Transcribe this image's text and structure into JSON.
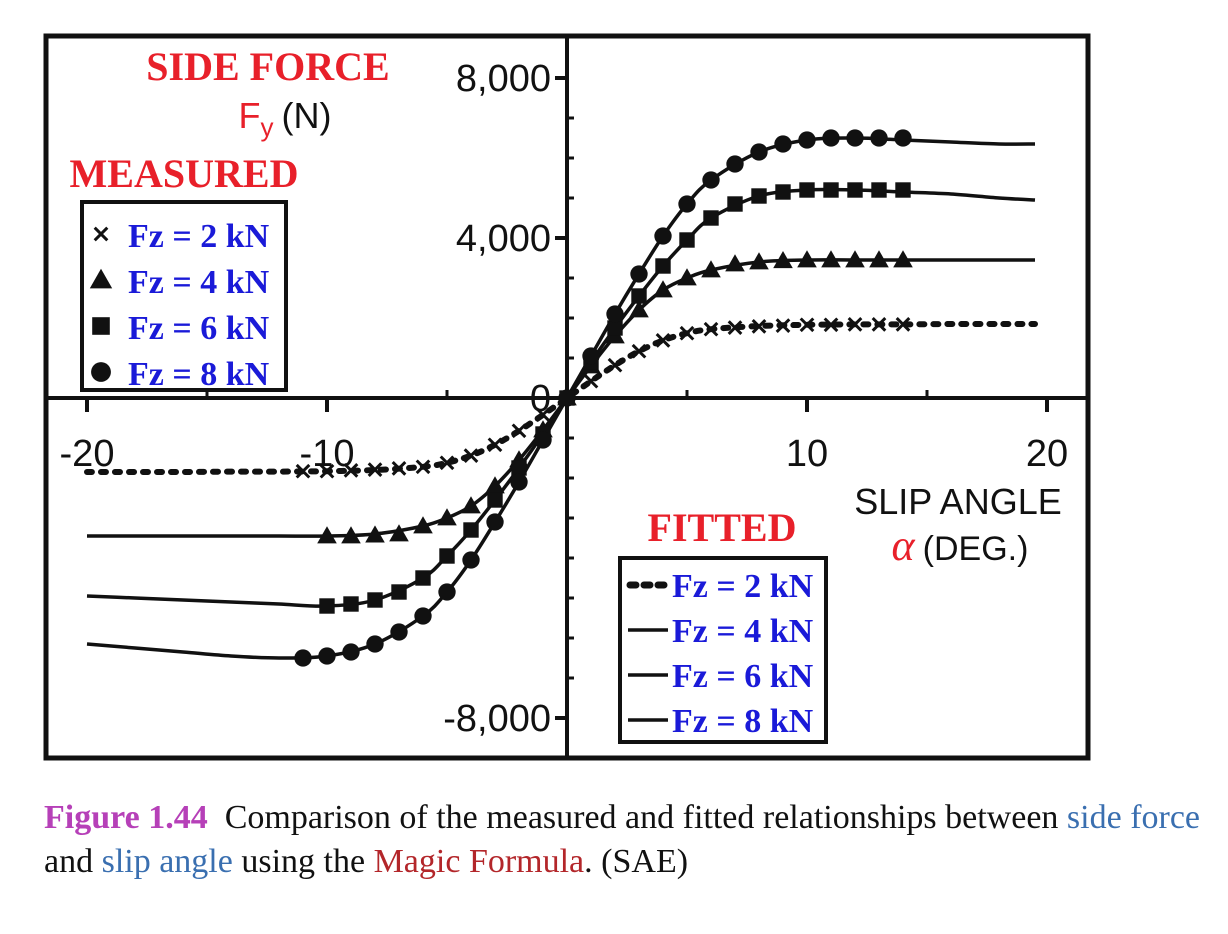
{
  "chart_data": {
    "type": "line",
    "title": "SIDE FORCE",
    "ylabel_symbol": "F",
    "ylabel_subscript": "y",
    "ylabel_unit": "(N)",
    "xlabel": "SLIP ANGLE",
    "xlabel_symbol": "α",
    "xlabel_unit": "(DEG.)",
    "xlim": [
      -20.5,
      22
    ],
    "ylim": [
      -8000,
      8000
    ],
    "x_ticks": [
      -20,
      -10,
      10,
      20
    ],
    "x_tick_labels": [
      "-20",
      "-10",
      "10",
      "20"
    ],
    "y_ticks": [
      8000,
      4000,
      0,
      -8000
    ],
    "y_tick_labels": [
      "8,000",
      "4,000",
      "0",
      "-8,000"
    ],
    "grid": false,
    "measured_title": "MEASURED",
    "fitted_title": "FITTED",
    "legend_measured": [
      {
        "marker": "x",
        "label": "Fz = 2 kN"
      },
      {
        "marker": "triangle",
        "label": "Fz = 4 kN"
      },
      {
        "marker": "square",
        "label": "Fz = 6 kN"
      },
      {
        "marker": "circle",
        "label": "Fz = 8 kN"
      }
    ],
    "legend_fitted": [
      {
        "style": "dotted",
        "label": "Fz = 2 kN"
      },
      {
        "style": "solid",
        "label": "Fz = 4 kN"
      },
      {
        "style": "solid",
        "label": "Fz = 6 kN"
      },
      {
        "style": "solid",
        "label": "Fz = 8 kN"
      }
    ],
    "series": [
      {
        "name": "Fz = 2 kN",
        "marker": "x",
        "line": "dotted",
        "fitted_x": [
          -20,
          -18,
          -16,
          -14,
          -12,
          -10,
          -8,
          -6,
          -5,
          -4,
          -3,
          -2,
          -1,
          0,
          1,
          2,
          3,
          4,
          5,
          6,
          8,
          10,
          12,
          14,
          16,
          18,
          19.5
        ],
        "fitted_y": [
          -1850,
          -1850,
          -1850,
          -1840,
          -1840,
          -1830,
          -1800,
          -1720,
          -1620,
          -1440,
          -1170,
          -820,
          -420,
          0,
          420,
          820,
          1170,
          1440,
          1620,
          1720,
          1800,
          1830,
          1840,
          1840,
          1850,
          1850,
          1850
        ],
        "measured_x": [
          -11,
          -10,
          -9,
          -8,
          -7,
          -6,
          -5,
          -4,
          -3,
          -2,
          -1,
          0,
          1,
          2,
          3,
          4,
          5,
          6,
          7,
          8,
          9,
          10,
          11,
          12,
          13,
          14
        ],
        "measured_y": [
          -1830,
          -1830,
          -1810,
          -1790,
          -1760,
          -1720,
          -1620,
          -1440,
          -1170,
          -820,
          -420,
          0,
          420,
          820,
          1170,
          1440,
          1620,
          1720,
          1760,
          1790,
          1810,
          1830,
          1830,
          1840,
          1840,
          1840
        ]
      },
      {
        "name": "Fz = 4 kN",
        "marker": "triangle",
        "line": "solid",
        "fitted_x": [
          -20,
          -18,
          -16,
          -14,
          -12,
          -10,
          -8,
          -6,
          -5,
          -4,
          -3,
          -2,
          -1,
          0,
          1,
          2,
          3,
          4,
          5,
          6,
          8,
          10,
          12,
          14,
          16,
          18,
          19.5
        ],
        "fitted_y": [
          -3450,
          -3450,
          -3450,
          -3450,
          -3450,
          -3450,
          -3400,
          -3200,
          -3000,
          -2700,
          -2200,
          -1550,
          -800,
          0,
          800,
          1550,
          2200,
          2700,
          3000,
          3200,
          3400,
          3450,
          3450,
          3450,
          3450,
          3450,
          3450
        ],
        "measured_x": [
          -10,
          -9,
          -8,
          -7,
          -6,
          -5,
          -4,
          -3,
          -2,
          -1,
          0,
          1,
          2,
          3,
          4,
          5,
          6,
          7,
          8,
          9,
          10,
          11,
          12,
          13,
          14
        ],
        "measured_y": [
          -3450,
          -3450,
          -3430,
          -3400,
          -3200,
          -3000,
          -2700,
          -2200,
          -1550,
          -800,
          0,
          800,
          1550,
          2200,
          2700,
          3000,
          3200,
          3350,
          3400,
          3430,
          3450,
          3450,
          3450,
          3450,
          3450
        ]
      },
      {
        "name": "Fz = 6 kN",
        "marker": "square",
        "line": "solid",
        "fitted_x": [
          -20,
          -18,
          -16,
          -14,
          -12,
          -10,
          -8,
          -6,
          -5,
          -4,
          -3,
          -2,
          -1,
          0,
          1,
          2,
          3,
          4,
          5,
          6,
          8,
          10,
          12,
          14,
          16,
          18,
          19.5
        ],
        "fitted_y": [
          -4950,
          -5000,
          -5050,
          -5100,
          -5150,
          -5200,
          -5050,
          -4500,
          -3950,
          -3300,
          -2550,
          -1750,
          -900,
          0,
          900,
          1750,
          2550,
          3300,
          3950,
          4500,
          5050,
          5200,
          5200,
          5150,
          5100,
          5000,
          4950
        ],
        "measured_x": [
          -10,
          -9,
          -8,
          -7,
          -6,
          -5,
          -4,
          -3,
          -2,
          -1,
          0,
          1,
          2,
          3,
          4,
          5,
          6,
          7,
          8,
          9,
          10,
          11,
          12,
          13,
          14
        ],
        "measured_y": [
          -5200,
          -5150,
          -5050,
          -4850,
          -4500,
          -3950,
          -3300,
          -2550,
          -1750,
          -900,
          0,
          900,
          1750,
          2550,
          3300,
          3950,
          4500,
          4850,
          5050,
          5150,
          5200,
          5200,
          5200,
          5200,
          5200
        ]
      },
      {
        "name": "Fz = 8 kN",
        "marker": "circle",
        "line": "solid",
        "fitted_x": [
          -20,
          -18,
          -16,
          -14,
          -12,
          -10,
          -8,
          -6,
          -5,
          -4,
          -3,
          -2,
          -1,
          0,
          1,
          2,
          3,
          4,
          5,
          6,
          8,
          10,
          12,
          14,
          16,
          18,
          19.5
        ],
        "fitted_y": [
          -6150,
          -6250,
          -6350,
          -6450,
          -6500,
          -6450,
          -6150,
          -5450,
          -4850,
          -4050,
          -3100,
          -2100,
          -1050,
          0,
          1050,
          2100,
          3100,
          4050,
          4850,
          5450,
          6150,
          6450,
          6500,
          6450,
          6400,
          6350,
          6350
        ],
        "measured_x": [
          -11,
          -10,
          -9,
          -8,
          -7,
          -6,
          -5,
          -4,
          -3,
          -2,
          -1,
          0,
          1,
          2,
          3,
          4,
          5,
          6,
          7,
          8,
          9,
          10,
          11,
          12,
          13,
          14
        ],
        "measured_y": [
          -6500,
          -6450,
          -6350,
          -6150,
          -5850,
          -5450,
          -4850,
          -4050,
          -3100,
          -2100,
          -1050,
          0,
          1050,
          2100,
          3100,
          4050,
          4850,
          5450,
          5850,
          6150,
          6350,
          6450,
          6500,
          6500,
          6500,
          6500
        ]
      }
    ]
  },
  "caption": {
    "figure_label": "Figure 1.44",
    "text_1": "Comparison of the measured and fitted relationships between",
    "term_1": "side force",
    "text_2": "and",
    "term_2": "slip angle",
    "text_3": "using the",
    "term_3": "Magic Formula",
    "text_4": ". (SAE)"
  },
  "colors": {
    "title_red": "#e8202a",
    "legend_blue": "#1a1ad8",
    "figure_magenta": "#b640b8",
    "term_blue": "#3a6fb0",
    "term_red": "#b3262a",
    "ink": "#111111"
  }
}
